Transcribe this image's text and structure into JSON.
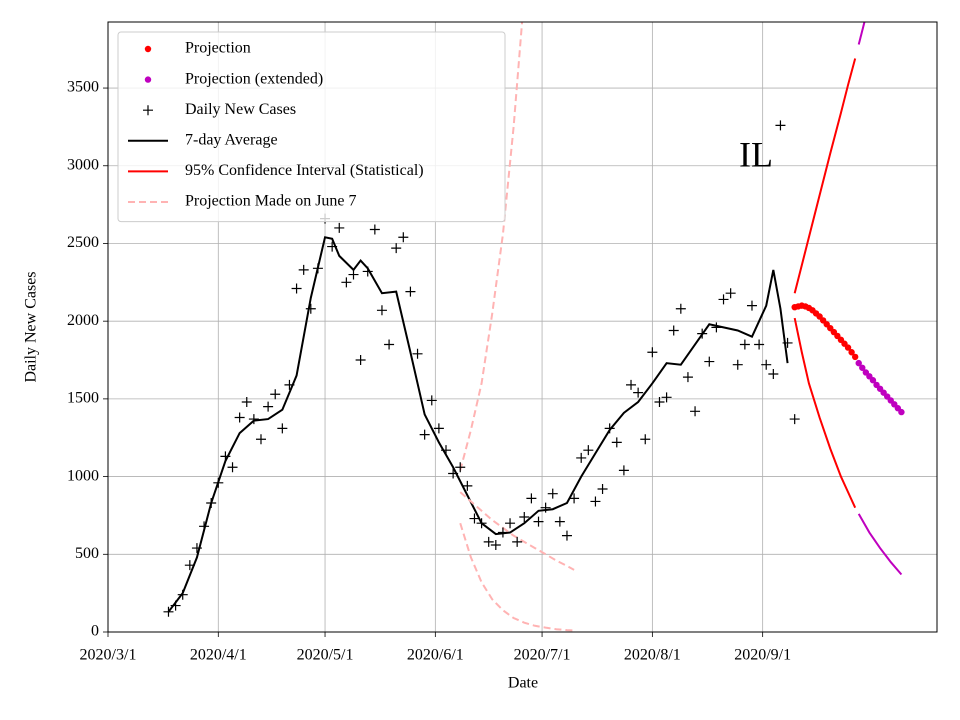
{
  "chart_data": {
    "type": "line",
    "xlabel": "Date",
    "ylabel": "Daily New Cases",
    "annotation": "IL",
    "xlim": [
      "2020/3/1",
      "2020/10/20"
    ],
    "xticks": [
      "2020/3/1",
      "2020/4/1",
      "2020/5/1",
      "2020/6/1",
      "2020/7/1",
      "2020/8/1",
      "2020/9/1"
    ],
    "ylim": [
      0,
      3925
    ],
    "yticks": [
      0,
      500,
      1000,
      1500,
      2000,
      2500,
      3000,
      3500
    ],
    "grid": true,
    "legend": "upper left",
    "series": [
      {
        "name": "Projection",
        "color": "#ff0000",
        "marker": "dot",
        "x": [
          "2020/9/10",
          "2020/9/11",
          "2020/9/12",
          "2020/9/13",
          "2020/9/14",
          "2020/9/15",
          "2020/9/16",
          "2020/9/17",
          "2020/9/18",
          "2020/9/19",
          "2020/9/20",
          "2020/9/21",
          "2020/9/22",
          "2020/9/23",
          "2020/9/24",
          "2020/9/25",
          "2020/9/26",
          "2020/9/27"
        ],
        "values": [
          2090,
          2095,
          2100,
          2095,
          2085,
          2070,
          2050,
          2030,
          2005,
          1980,
          1955,
          1930,
          1905,
          1880,
          1855,
          1830,
          1800,
          1770
        ]
      },
      {
        "name": "Projection (extended)",
        "color": "#bf00bf",
        "marker": "dot",
        "x": [
          "2020/9/28",
          "2020/9/29",
          "2020/9/30",
          "2020/10/1",
          "2020/10/2",
          "2020/10/3",
          "2020/10/4",
          "2020/10/5",
          "2020/10/6",
          "2020/10/7",
          "2020/10/8",
          "2020/10/9",
          "2020/10/10"
        ],
        "values": [
          1730,
          1700,
          1670,
          1645,
          1620,
          1590,
          1565,
          1540,
          1515,
          1490,
          1465,
          1440,
          1415
        ]
      },
      {
        "name": "Daily New Cases",
        "color": "#000000",
        "marker": "plus",
        "x": [
          "2020/3/18",
          "2020/3/20",
          "2020/3/22",
          "2020/3/24",
          "2020/3/26",
          "2020/3/28",
          "2020/3/30",
          "2020/4/1",
          "2020/4/3",
          "2020/4/5",
          "2020/4/7",
          "2020/4/9",
          "2020/4/11",
          "2020/4/13",
          "2020/4/15",
          "2020/4/17",
          "2020/4/19",
          "2020/4/21",
          "2020/4/23",
          "2020/4/25",
          "2020/4/27",
          "2020/4/29",
          "2020/5/1",
          "2020/5/3",
          "2020/5/5",
          "2020/5/7",
          "2020/5/9",
          "2020/5/11",
          "2020/5/13",
          "2020/5/15",
          "2020/5/17",
          "2020/5/19",
          "2020/5/21",
          "2020/5/23",
          "2020/5/25",
          "2020/5/27",
          "2020/5/29",
          "2020/5/31",
          "2020/6/2",
          "2020/6/4",
          "2020/6/6",
          "2020/6/8",
          "2020/6/10",
          "2020/6/12",
          "2020/6/14",
          "2020/6/16",
          "2020/6/18",
          "2020/6/20",
          "2020/6/22",
          "2020/6/24",
          "2020/6/26",
          "2020/6/28",
          "2020/6/30",
          "2020/7/2",
          "2020/7/4",
          "2020/7/6",
          "2020/7/8",
          "2020/7/10",
          "2020/7/12",
          "2020/7/14",
          "2020/7/16",
          "2020/7/18",
          "2020/7/20",
          "2020/7/22",
          "2020/7/24",
          "2020/7/26",
          "2020/7/28",
          "2020/7/30",
          "2020/8/1",
          "2020/8/3",
          "2020/8/5",
          "2020/8/7",
          "2020/8/9",
          "2020/8/11",
          "2020/8/13",
          "2020/8/15",
          "2020/8/17",
          "2020/8/19",
          "2020/8/21",
          "2020/8/23",
          "2020/8/25",
          "2020/8/27",
          "2020/8/29",
          "2020/8/31",
          "2020/9/2",
          "2020/9/4",
          "2020/9/6",
          "2020/9/8",
          "2020/9/10"
        ],
        "values": [
          130,
          170,
          240,
          430,
          540,
          680,
          830,
          960,
          1130,
          1060,
          1380,
          1480,
          1370,
          1240,
          1450,
          1530,
          1310,
          1590,
          2210,
          2330,
          2080,
          2340,
          2660,
          2480,
          2600,
          2250,
          2300,
          1750,
          2320,
          2590,
          2070,
          1850,
          2470,
          2540,
          2190,
          1790,
          1270,
          1490,
          1310,
          1170,
          1020,
          1060,
          940,
          730,
          700,
          580,
          560,
          640,
          700,
          580,
          740,
          860,
          710,
          800,
          890,
          710,
          620,
          860,
          1120,
          1170,
          840,
          920,
          1310,
          1220,
          1040,
          1590,
          1540,
          1240,
          1800,
          1480,
          1510,
          1940,
          2080,
          1640,
          1420,
          1920,
          1740,
          1960,
          2140,
          2180,
          1720,
          1850,
          2100,
          1850,
          1720,
          1660,
          3260,
          1860,
          1370
        ]
      },
      {
        "name": "7-day Average",
        "color": "#000000",
        "line": "solid",
        "x": [
          "2020/3/18",
          "2020/3/22",
          "2020/3/26",
          "2020/3/30",
          "2020/4/3",
          "2020/4/7",
          "2020/4/11",
          "2020/4/15",
          "2020/4/19",
          "2020/4/23",
          "2020/4/27",
          "2020/5/1",
          "2020/5/3",
          "2020/5/5",
          "2020/5/9",
          "2020/5/11",
          "2020/5/13",
          "2020/5/17",
          "2020/5/21",
          "2020/5/25",
          "2020/5/29",
          "2020/6/2",
          "2020/6/6",
          "2020/6/10",
          "2020/6/14",
          "2020/6/18",
          "2020/6/22",
          "2020/6/26",
          "2020/6/30",
          "2020/7/4",
          "2020/7/8",
          "2020/7/12",
          "2020/7/16",
          "2020/7/20",
          "2020/7/24",
          "2020/7/28",
          "2020/8/1",
          "2020/8/5",
          "2020/8/9",
          "2020/8/13",
          "2020/8/17",
          "2020/8/21",
          "2020/8/25",
          "2020/8/29",
          "2020/9/2",
          "2020/9/4",
          "2020/9/6",
          "2020/9/8"
        ],
        "values": [
          130,
          250,
          480,
          830,
          1100,
          1280,
          1360,
          1370,
          1430,
          1650,
          2150,
          2540,
          2530,
          2420,
          2330,
          2390,
          2340,
          2180,
          2190,
          1800,
          1400,
          1220,
          1060,
          880,
          700,
          630,
          640,
          700,
          780,
          790,
          830,
          1000,
          1150,
          1300,
          1410,
          1480,
          1600,
          1730,
          1720,
          1850,
          1980,
          1960,
          1940,
          1900,
          2100,
          2330,
          2080,
          1730
        ]
      },
      {
        "name": "95% Confidence Interval (Statistical)",
        "color": "#ff0000",
        "line": "solid",
        "x": [
          "2020/9/10",
          "2020/9/12",
          "2020/9/14",
          "2020/9/17",
          "2020/9/20",
          "2020/9/23",
          "2020/9/25",
          "2020/9/27"
        ],
        "lower": [
          2020,
          1800,
          1600,
          1380,
          1180,
          1000,
          900,
          800
        ],
        "upper": [
          2180,
          2360,
          2540,
          2810,
          3080,
          3340,
          3520,
          3690
        ]
      },
      {
        "color": "#bf00bf",
        "line": "solid",
        "x": [
          "2020/9/28",
          "2020/10/1",
          "2020/10/4",
          "2020/10/7",
          "2020/10/10"
        ],
        "lower": [
          760,
          640,
          540,
          450,
          370
        ],
        "upper": [
          3780,
          4050,
          null,
          null,
          null
        ]
      },
      {
        "name": "Projection Made on June 7",
        "color": "#ffb3b3",
        "line": "dashed",
        "x": [
          "2020/6/8",
          "2020/6/11",
          "2020/6/14",
          "2020/6/17",
          "2020/6/20",
          "2020/6/23",
          "2020/6/26",
          "2020/6/29",
          "2020/7/2",
          "2020/7/5",
          "2020/7/8",
          "2020/7/10"
        ],
        "values": [
          900,
          840,
          780,
          720,
          670,
          620,
          580,
          540,
          500,
          460,
          425,
          400
        ],
        "lower": [
          700,
          480,
          320,
          210,
          140,
          90,
          60,
          40,
          28,
          18,
          12,
          10
        ],
        "upper": [
          1040,
          1300,
          1600,
          2050,
          2560,
          3250,
          4100,
          null,
          null,
          null,
          null,
          null
        ]
      }
    ]
  }
}
